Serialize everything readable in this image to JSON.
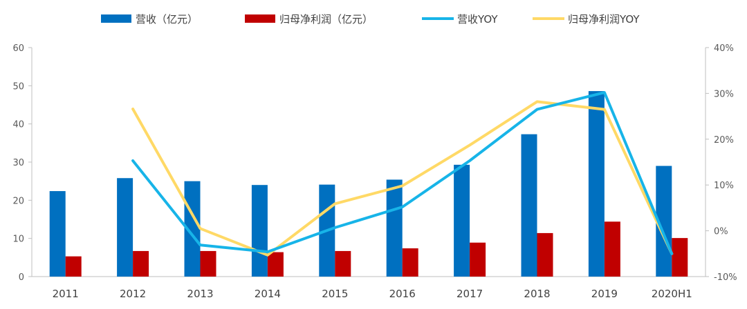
{
  "chart_data": {
    "type": "bar",
    "title": "",
    "categories": [
      "2011",
      "2012",
      "2013",
      "2014",
      "2015",
      "2016",
      "2017",
      "2018",
      "2019",
      "2020H1"
    ],
    "series": [
      {
        "name": "营收（亿元）",
        "kind": "bar",
        "axis": "left",
        "color": "#0070C0",
        "values": [
          22.4,
          25.8,
          25.0,
          24.0,
          24.1,
          25.4,
          29.3,
          37.3,
          48.6,
          29.0
        ]
      },
      {
        "name": "归母净利润（亿元）",
        "kind": "bar",
        "axis": "left",
        "color": "#C00000",
        "values": [
          5.3,
          6.7,
          6.7,
          6.4,
          6.7,
          7.4,
          8.9,
          11.4,
          14.4,
          10.1
        ]
      },
      {
        "name": "营收YOY",
        "kind": "line",
        "axis": "right",
        "color": "#17B4E8",
        "values": [
          null,
          15.3,
          -3.1,
          -4.6,
          0.7,
          5.2,
          15.3,
          26.5,
          30.2,
          -5.0
        ]
      },
      {
        "name": "归母净利润YOY",
        "kind": "line",
        "axis": "right",
        "color": "#FFD966",
        "values": [
          null,
          26.6,
          0.5,
          -5.3,
          5.9,
          9.8,
          18.7,
          28.2,
          26.5,
          -5.0
        ]
      }
    ],
    "y_left": {
      "min": 0,
      "max": 60,
      "ticks": [
        0,
        10,
        20,
        30,
        40,
        50,
        60
      ]
    },
    "y_right": {
      "min": -10,
      "max": 40,
      "ticks": [
        -10,
        0,
        10,
        20,
        30,
        40
      ],
      "tick_labels": [
        "-10%",
        "0%",
        "10%",
        "20%",
        "30%",
        "40%"
      ]
    },
    "grid": false,
    "legend": "top"
  }
}
